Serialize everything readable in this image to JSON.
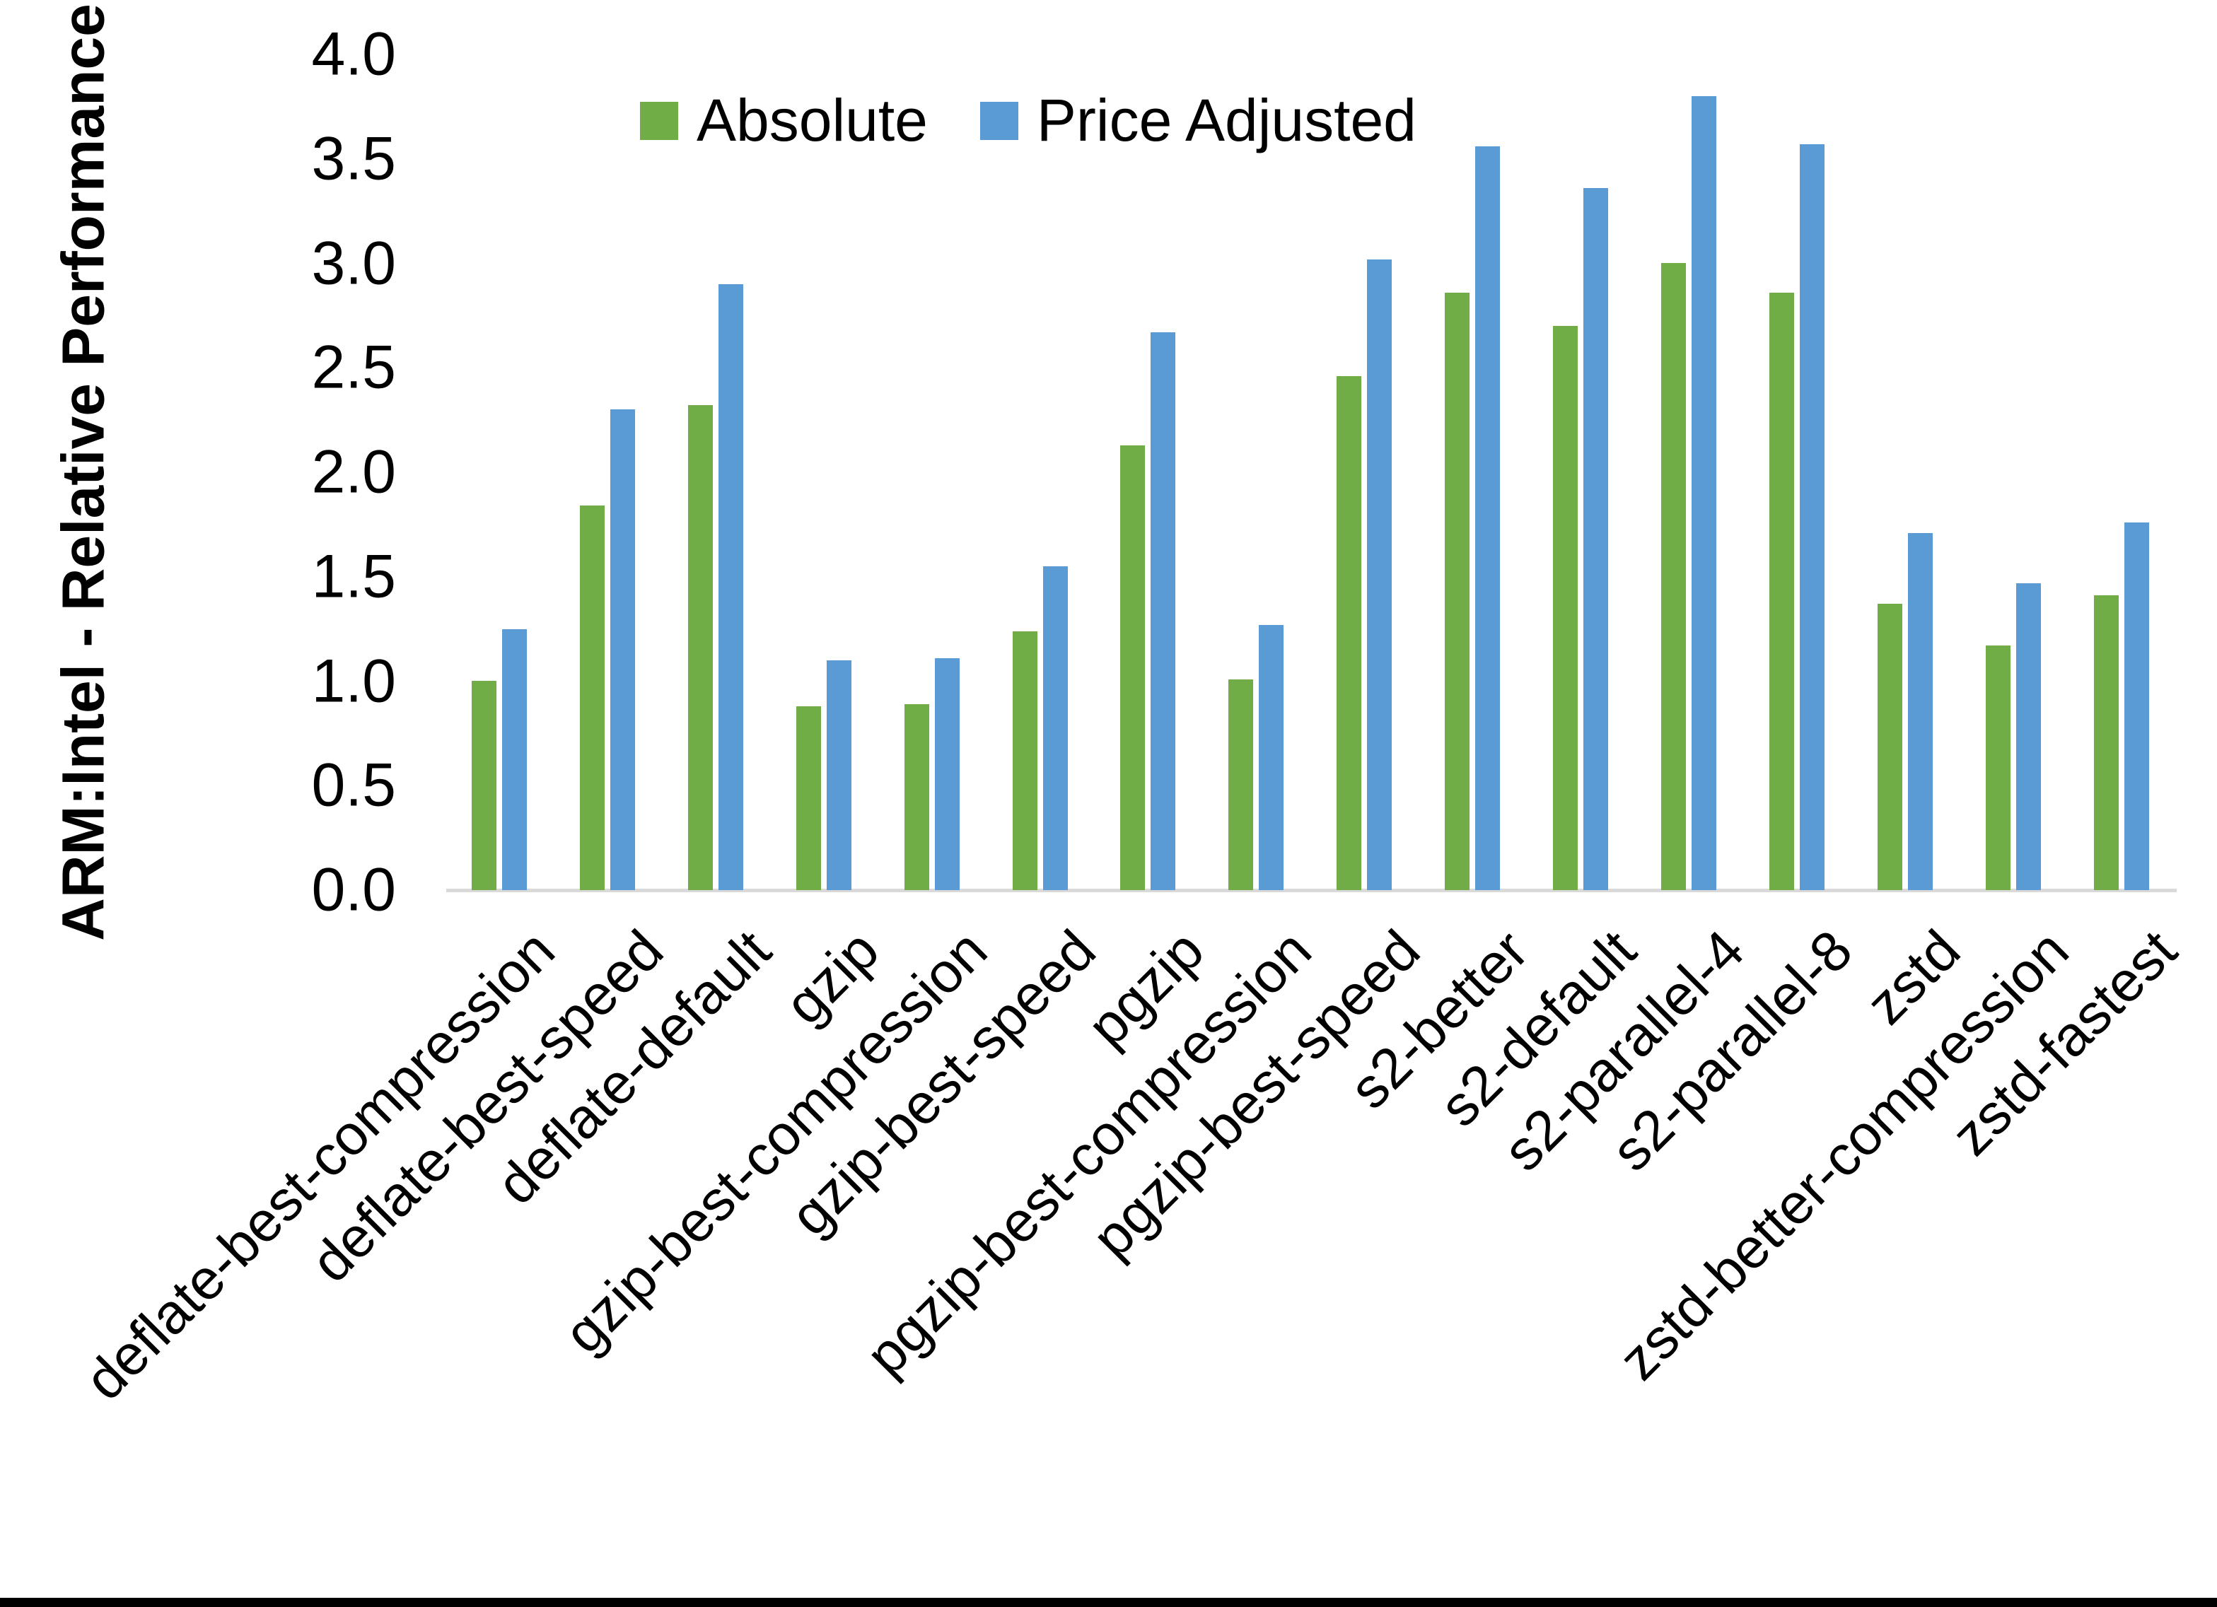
{
  "figure": {
    "y_axis_title": "ARM:Intel - Relative Performance"
  },
  "legend": {
    "items": [
      {
        "label": "Absolute",
        "color": "#70AD47"
      },
      {
        "label": "Price Adjusted",
        "color": "#5B9BD5"
      }
    ]
  },
  "colors": {
    "absolute_green": "#70AD47",
    "price_adjusted_blue": "#5B9BD5",
    "axis_line_gray": "#D9D9D9",
    "text_black": "#000000",
    "bottom_edge_black": "#000000"
  },
  "chart_data": {
    "type": "bar",
    "title": "",
    "xlabel": "",
    "ylabel": "ARM:Intel - Relative Performance",
    "ylim": [
      0.0,
      4.0
    ],
    "ytick_step": 0.5,
    "grid": false,
    "legend_position": "top-center",
    "x_label_rotation_deg": 45,
    "categories": [
      "deflate-best-compression",
      "deflate-best-speed",
      "deflate-default",
      "gzip",
      "gzip-best-compression",
      "gzip-best-speed",
      "pgzip",
      "pgzip-best-compression",
      "pgzip-best-speed",
      "s2-better",
      "s2-default",
      "s2-parallel-4",
      "s2-parallel-8",
      "zstd",
      "zstd-better-compression",
      "zstd-fastest"
    ],
    "series": [
      {
        "name": "Absolute",
        "color": "#70AD47",
        "values": [
          1.0,
          1.84,
          2.32,
          0.88,
          0.89,
          1.24,
          2.13,
          1.01,
          2.46,
          2.86,
          2.7,
          3.0,
          2.86,
          1.37,
          1.17,
          1.41
        ]
      },
      {
        "name": "Price Adjusted",
        "color": "#5B9BD5",
        "values": [
          1.25,
          2.3,
          2.9,
          1.1,
          1.11,
          1.55,
          2.67,
          1.27,
          3.02,
          3.56,
          3.36,
          3.8,
          3.57,
          1.71,
          1.47,
          1.76
        ]
      }
    ]
  }
}
